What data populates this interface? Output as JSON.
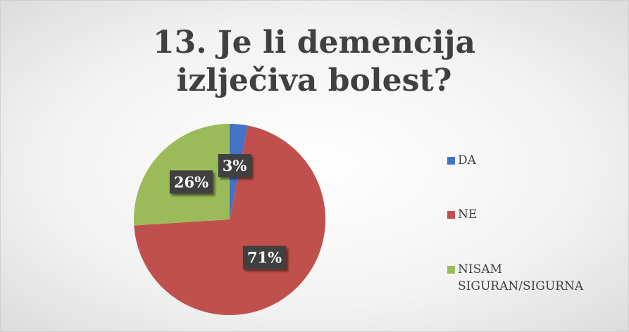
{
  "chart_data": {
    "type": "pie",
    "title": "13. Je li demencija izlječiva bolest?",
    "categories": [
      "DA",
      "NE",
      "NISAM SIGURAN/SIGURNA"
    ],
    "values": [
      3,
      71,
      26
    ],
    "value_labels": [
      "3%",
      "71%",
      "26%"
    ],
    "colors": [
      "#4472c4",
      "#c0504d",
      "#9bbb59"
    ],
    "legend": "right"
  }
}
